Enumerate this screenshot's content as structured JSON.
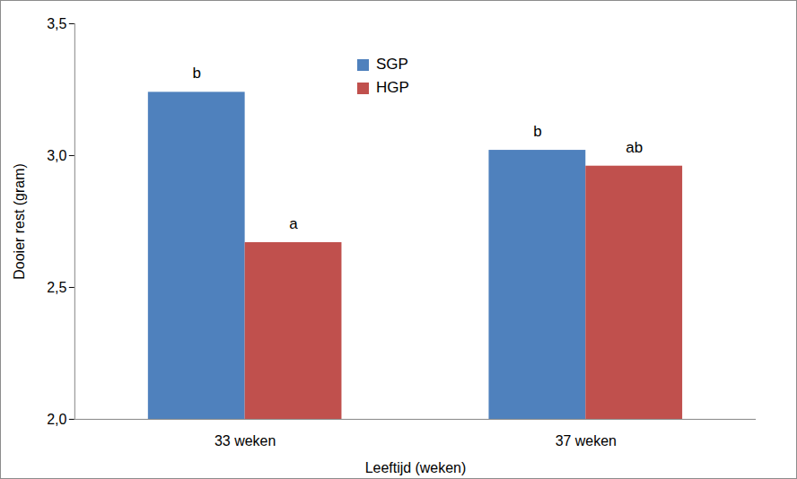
{
  "chart_data": {
    "type": "bar",
    "categories": [
      "33 weken",
      "37 weken"
    ],
    "series": [
      {
        "name": "SGP",
        "color": "#4f81bd",
        "values": [
          3.24,
          3.02
        ]
      },
      {
        "name": "HGP",
        "color": "#c0504d",
        "values": [
          2.67,
          2.96
        ]
      }
    ],
    "x_label": "Leeftijd (weken)",
    "y_label": "Dooier rest (gram)",
    "ylim": [
      2.0,
      3.5
    ],
    "yticks": [
      {
        "value": 2.0,
        "label": "2,0"
      },
      {
        "value": 2.5,
        "label": "2,5"
      },
      {
        "value": 3.0,
        "label": "3,0"
      },
      {
        "value": 3.5,
        "label": "3,5"
      }
    ],
    "grid": false,
    "legend": "top",
    "annotations": [
      {
        "category": "33 weken",
        "series": "SGP",
        "text": "b"
      },
      {
        "category": "33 weken",
        "series": "HGP",
        "text": "a"
      },
      {
        "category": "37 weken",
        "series": "SGP",
        "text": "b"
      },
      {
        "category": "37 weken",
        "series": "HGP",
        "text": "ab"
      }
    ]
  }
}
